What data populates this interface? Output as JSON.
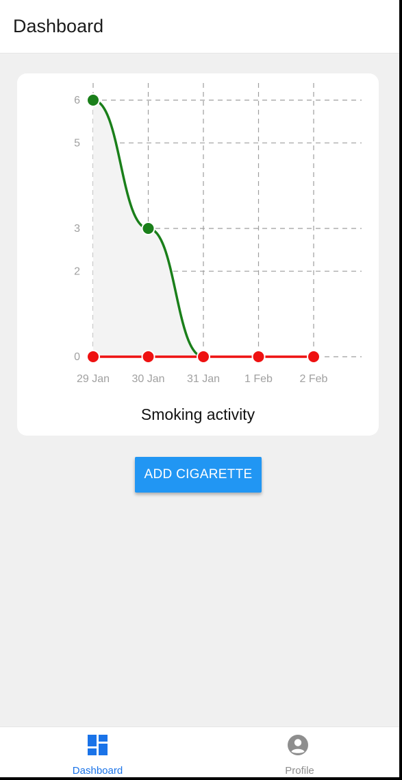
{
  "header": {
    "title": "Dashboard"
  },
  "chart": {
    "caption": "Smoking activity",
    "colors": {
      "grid": "#9e9e9e",
      "green": "#1a7f1a",
      "red": "#ee1111",
      "area": "#f3f3f3",
      "tick": "#a0a0a0"
    }
  },
  "chart_data": {
    "type": "line",
    "title": "Smoking activity",
    "categories": [
      "29 Jan",
      "30 Jan",
      "31 Jan",
      "1 Feb",
      "2 Feb"
    ],
    "y_ticks": [
      0,
      2,
      3,
      5,
      6
    ],
    "ylim": [
      0,
      6
    ],
    "grid": true,
    "series": [
      {
        "values": [
          6,
          3,
          0,
          null,
          null
        ],
        "color": "#1a7f1a",
        "style": "smooth",
        "fill": true
      },
      {
        "values": [
          0,
          0,
          0,
          0,
          0
        ],
        "color": "#ee1111",
        "style": "straight"
      }
    ]
  },
  "actions": {
    "add_label": "ADD CIGARETTE"
  },
  "tabbar": {
    "items": [
      {
        "label": "Dashboard",
        "icon": "dashboard-icon",
        "active": true,
        "color": "#1a73e8"
      },
      {
        "label": "Profile",
        "icon": "account-circle-icon",
        "active": false,
        "color": "#8e8e8e"
      }
    ]
  }
}
